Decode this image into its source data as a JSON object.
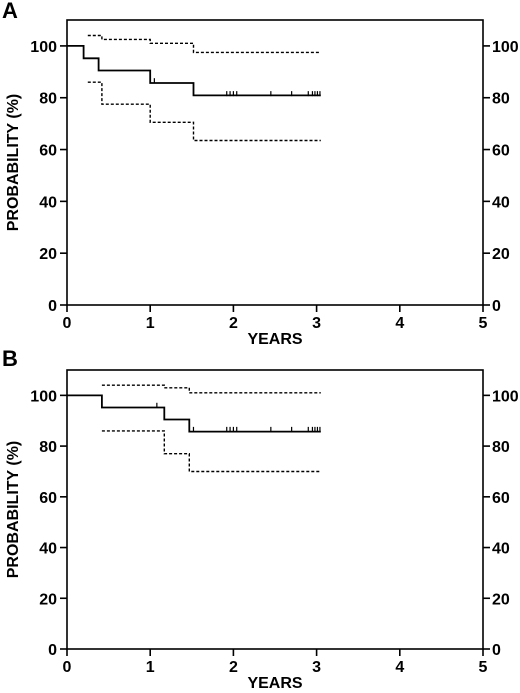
{
  "chart_data": [
    {
      "type": "line",
      "panel_label": "A",
      "xlabel": "YEARS",
      "ylabel": "PROBABILITY (%)",
      "xlim": [
        0,
        5
      ],
      "ylim": [
        0,
        110
      ],
      "x_ticks": [
        0,
        1,
        2,
        3,
        4,
        5
      ],
      "y_ticks": [
        0,
        20,
        40,
        60,
        80,
        100
      ],
      "right_y_ticks": [
        0,
        20,
        40,
        60,
        80,
        100
      ],
      "grid": false,
      "series": [
        {
          "style": "solid",
          "x": [
            0,
            0.2,
            0.2,
            0.38,
            0.38,
            1.0,
            1.0,
            1.52,
            1.52,
            3.05
          ],
          "y": [
            100,
            100,
            95.2,
            95.2,
            90.5,
            90.5,
            85.7,
            85.7,
            80.9,
            80.9
          ]
        },
        {
          "style": "dotted",
          "x": [
            0.25,
            0.42,
            0.42,
            1.0,
            1.0,
            1.52,
            1.52,
            3.05
          ],
          "y": [
            104,
            104,
            102.5,
            102.5,
            101,
            101,
            97.5,
            97.5
          ]
        },
        {
          "style": "dotted",
          "x": [
            0.25,
            0.42,
            0.42,
            1.0,
            1.0,
            1.52,
            1.52,
            3.05
          ],
          "y": [
            86,
            86,
            77.5,
            77.5,
            70.5,
            70.5,
            63.5,
            63.5
          ]
        }
      ],
      "censor_marks": {
        "x": [
          1.05,
          1.92,
          1.96,
          2.0,
          2.04,
          2.45,
          2.7,
          2.9,
          2.95,
          2.98,
          3.01,
          3.04
        ],
        "y": [
          86,
          81,
          81,
          81,
          81,
          81,
          81,
          81,
          81,
          81,
          81,
          81
        ]
      }
    },
    {
      "type": "line",
      "panel_label": "B",
      "xlabel": "YEARS",
      "ylabel": "PROBABILITY (%)",
      "xlim": [
        0,
        5
      ],
      "ylim": [
        0,
        110
      ],
      "x_ticks": [
        0,
        1,
        2,
        3,
        4,
        5
      ],
      "y_ticks": [
        0,
        20,
        40,
        60,
        80,
        100
      ],
      "right_y_ticks": [
        0,
        20,
        40,
        60,
        80,
        100
      ],
      "grid": false,
      "series": [
        {
          "style": "solid",
          "x": [
            0,
            0.42,
            0.42,
            1.17,
            1.17,
            1.47,
            1.47,
            3.05
          ],
          "y": [
            100,
            100,
            95.2,
            95.2,
            90.5,
            90.5,
            85.7,
            85.7
          ]
        },
        {
          "style": "dotted",
          "x": [
            0.42,
            1.17,
            1.17,
            1.47,
            1.47,
            3.05
          ],
          "y": [
            104,
            104,
            103,
            103,
            101,
            101
          ]
        },
        {
          "style": "dotted",
          "x": [
            0.42,
            1.17,
            1.17,
            1.47,
            1.47,
            3.05
          ],
          "y": [
            86,
            86,
            77,
            77,
            70,
            70
          ]
        }
      ],
      "censor_marks": {
        "x": [
          1.08,
          1.52,
          1.92,
          1.96,
          2.0,
          2.04,
          2.45,
          2.7,
          2.9,
          2.95,
          2.98,
          3.01,
          3.04
        ],
        "y": [
          95.5,
          86,
          86,
          86,
          86,
          86,
          86,
          86,
          86,
          86,
          86,
          86,
          86
        ]
      }
    }
  ]
}
